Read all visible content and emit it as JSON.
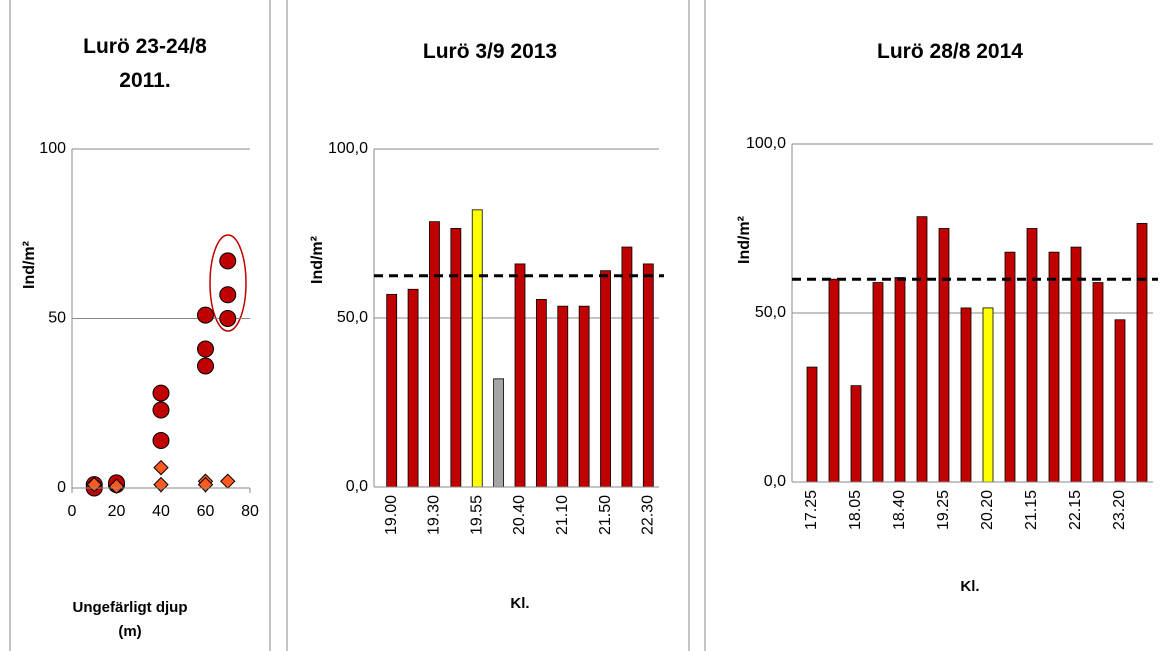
{
  "chart_data": [
    {
      "type": "scatter",
      "title": "Lurö 23-24/8 2011.",
      "ylabel": "Ind/m²",
      "xlabel": "Ungefärligt djup (m)",
      "xlim": [
        0,
        80
      ],
      "xticks": [
        0,
        20,
        40,
        60,
        80
      ],
      "ylim": [
        0,
        100
      ],
      "yticks": [
        0,
        50,
        100
      ],
      "series": [
        {
          "marker": "circle",
          "color": "#c00000",
          "x": [
            10,
            10,
            20,
            20,
            40,
            40,
            40,
            60,
            60,
            60,
            70,
            70,
            70
          ],
          "values": [
            1,
            0,
            1,
            1.5,
            28,
            23,
            14,
            51,
            41,
            36,
            67,
            57,
            50
          ]
        },
        {
          "marker": "diamond",
          "color": "#ff5a1f",
          "x": [
            10,
            20,
            40,
            40,
            60,
            60,
            70
          ],
          "values": [
            1,
            0.5,
            6,
            1,
            2,
            1,
            2
          ]
        }
      ]
    },
    {
      "type": "bar",
      "title": "Lurö  3/9 2013",
      "ylabel": "Ind/m²",
      "xlabel": "Kl.",
      "categories": [
        "19.00",
        null,
        "19.30",
        null,
        "19.55",
        null,
        "20.40",
        null,
        "21.10",
        null,
        "21.50",
        null,
        "22.30"
      ],
      "values": [
        57,
        58.5,
        78.5,
        76.5,
        82,
        32,
        66,
        55.5,
        53.5,
        53.5,
        64,
        71,
        66
      ],
      "colors": [
        "#c00000",
        "#c00000",
        "#c00000",
        "#c00000",
        "#ffff00",
        "#a6a6a6",
        "#c00000",
        "#c00000",
        "#c00000",
        "#c00000",
        "#c00000",
        "#c00000",
        "#c00000"
      ],
      "ylim": [
        0,
        100
      ],
      "yticks": [
        {
          "value": 0,
          "label": "0,0"
        },
        {
          "value": 50,
          "label": "50,0"
        },
        {
          "value": 100,
          "label": "100,0"
        }
      ],
      "hline": 62.5
    },
    {
      "type": "bar",
      "title": "Lurö 28/8 2014",
      "ylabel": "Ind/m²",
      "xlabel": "Kl.",
      "categories": [
        "17.25",
        null,
        "18.05",
        null,
        "18.40",
        null,
        "19.25",
        null,
        "20.20",
        null,
        "21.15",
        null,
        "22.15",
        null,
        "23.20",
        null
      ],
      "values": [
        34,
        60,
        28.5,
        59,
        60.5,
        78.5,
        75,
        51.5,
        51.5,
        68,
        75,
        68,
        69.5,
        59,
        48,
        76.5
      ],
      "colors": [
        "#c00000",
        "#c00000",
        "#c00000",
        "#c00000",
        "#c00000",
        "#c00000",
        "#c00000",
        "#c00000",
        "#ffff00",
        "#c00000",
        "#c00000",
        "#c00000",
        "#c00000",
        "#c00000",
        "#c00000",
        "#c00000"
      ],
      "ylim": [
        0,
        100
      ],
      "yticks": [
        {
          "value": 0,
          "label": "0,0"
        },
        {
          "value": 50,
          "label": "50,0"
        },
        {
          "value": 100,
          "label": "100,0"
        }
      ],
      "hline": 60
    }
  ]
}
